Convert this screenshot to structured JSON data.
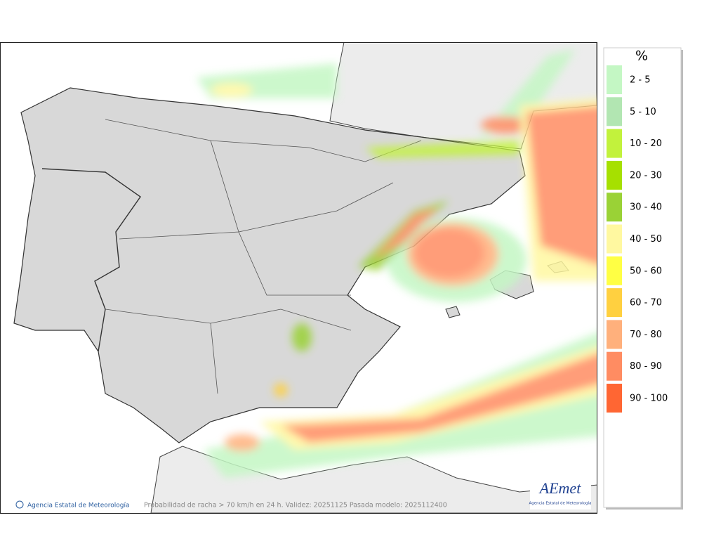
{
  "legend": {
    "title": "%",
    "items": [
      {
        "label": "2 - 5",
        "color": "#c4f7c4"
      },
      {
        "label": "5 - 10",
        "color": "#b2e6b2"
      },
      {
        "label": "10 - 20",
        "color": "#c2f23c"
      },
      {
        "label": "20 - 30",
        "color": "#a6e000"
      },
      {
        "label": "30 - 40",
        "color": "#9ad236"
      },
      {
        "label": "40 - 50",
        "color": "#fff8a0"
      },
      {
        "label": "50 - 60",
        "color": "#ffff44"
      },
      {
        "label": "60 - 70",
        "color": "#ffd040"
      },
      {
        "label": "70 - 80",
        "color": "#ffb07c"
      },
      {
        "label": "80 - 90",
        "color": "#ff8c62"
      },
      {
        "label": "90 - 100",
        "color": "#ff6633"
      }
    ]
  },
  "credit": "Agencia Estatal de Meteorología",
  "caption": "Probabilidad de racha > 70 km/h en 24 h. Validez: 20251125 Pasada modelo: 2025112400",
  "logo": {
    "name": "AEmet",
    "subtitle": "Agencia Estatal de Meteorología"
  }
}
